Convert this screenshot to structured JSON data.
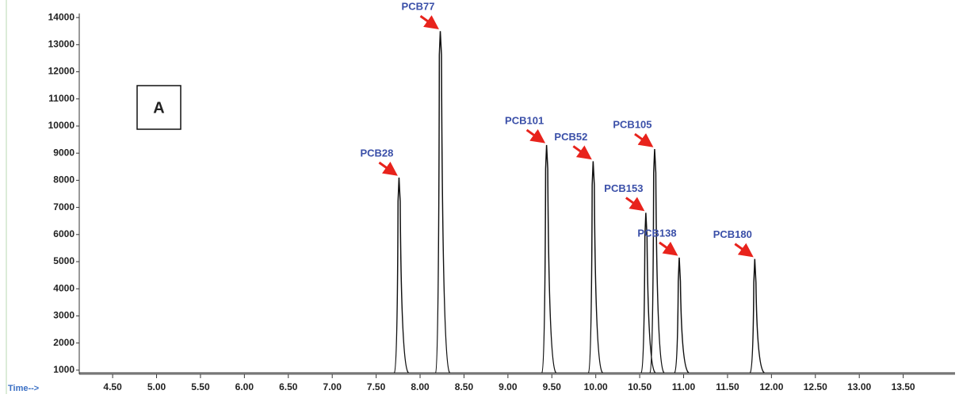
{
  "chart_data": {
    "type": "chromatogram",
    "panel_label": "A",
    "x_label": "Time-->",
    "baseline": 900,
    "peaks": [
      {
        "name": "PCB28",
        "x": 7.76,
        "y": 8100
      },
      {
        "name": "PCB77",
        "x": 8.23,
        "y": 13500
      },
      {
        "name": "PCB101",
        "x": 9.44,
        "y": 9300
      },
      {
        "name": "PCB52",
        "x": 9.97,
        "y": 8700
      },
      {
        "name": "PCB153",
        "x": 10.57,
        "y": 6800
      },
      {
        "name": "PCB105",
        "x": 10.67,
        "y": 9150
      },
      {
        "name": "PCB138",
        "x": 10.95,
        "y": 5150
      },
      {
        "name": "PCB180",
        "x": 11.81,
        "y": 5100
      }
    ],
    "xlim": [
      4.12,
      14.09
    ],
    "ylim": [
      850,
      14150
    ],
    "xticks": [
      {
        "value": 4.5,
        "label": "4.50"
      },
      {
        "value": 5,
        "label": "5.00"
      },
      {
        "value": 5.5,
        "label": "5.50"
      },
      {
        "value": 6,
        "label": "6.00"
      },
      {
        "value": 6.5,
        "label": "6.50"
      },
      {
        "value": 7,
        "label": "7.00"
      },
      {
        "value": 7.5,
        "label": "7.50"
      },
      {
        "value": 8,
        "label": "8.00"
      },
      {
        "value": 8.5,
        "label": "8.50"
      },
      {
        "value": 9,
        "label": "9.00"
      },
      {
        "value": 9.5,
        "label": "9.50"
      },
      {
        "value": 10,
        "label": "10.00"
      },
      {
        "value": 10.5,
        "label": "10.50"
      },
      {
        "value": 11,
        "label": "11.00"
      },
      {
        "value": 11.5,
        "label": "11.50"
      },
      {
        "value": 12,
        "label": "12.00"
      },
      {
        "value": 12.5,
        "label": "12.50"
      },
      {
        "value": 13,
        "label": "13.00"
      },
      {
        "value": 13.5,
        "label": "13.50"
      }
    ],
    "yticks": [
      1000,
      2000,
      3000,
      4000,
      5000,
      6000,
      7000,
      8000,
      9000,
      10000,
      11000,
      12000,
      13000,
      14000
    ],
    "line_color": "#111111",
    "label_color": "#3a4fa8",
    "arrow_color": "#e8231c"
  }
}
